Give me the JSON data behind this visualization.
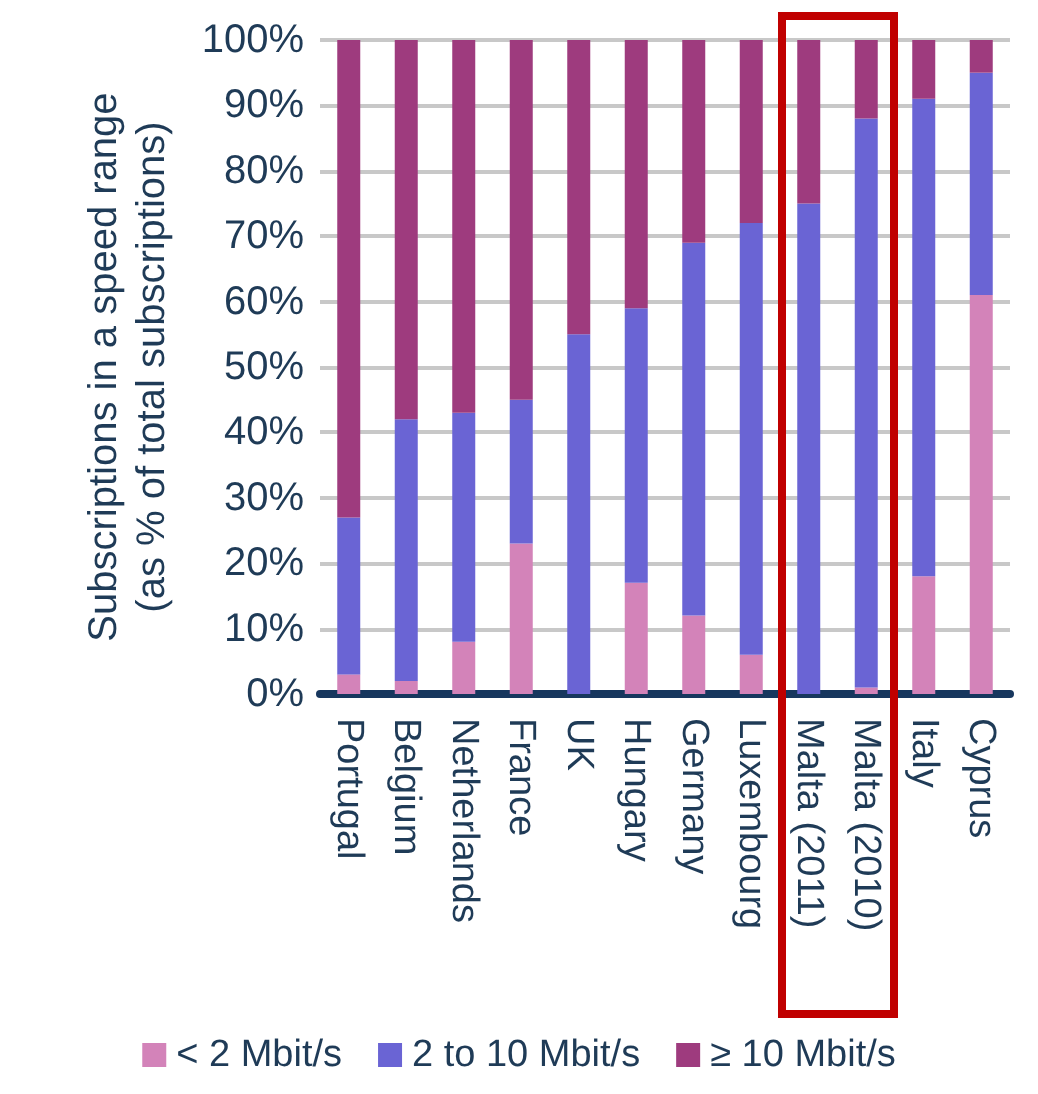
{
  "chart_data": {
    "type": "bar",
    "stacked": true,
    "ylabel": "Subscriptions in a speed range\n(as % of total subscriptions)",
    "categories": [
      "Portugal",
      "Belgium",
      "Netherlands",
      "France",
      "UK",
      "Hungary",
      "Germany",
      "Luxembourg",
      "Malta (2011)",
      "Malta (2010)",
      "Italy",
      "Cyprus"
    ],
    "series": [
      {
        "name": "< 2 Mbit/s",
        "color": "#d383b9",
        "values": [
          3,
          2,
          8,
          23,
          0,
          17,
          12,
          6,
          0,
          1,
          18,
          61
        ]
      },
      {
        "name": "2 to 10 Mbit/s",
        "color": "#6a64d4",
        "values": [
          24,
          40,
          35,
          22,
          55,
          42,
          57,
          66,
          75,
          87,
          73,
          34
        ]
      },
      {
        "name": "≥ 10 Mbit/s",
        "color": "#9e3b7e",
        "values": [
          73,
          58,
          57,
          55,
          45,
          41,
          31,
          28,
          25,
          12,
          9,
          5
        ]
      }
    ],
    "ylim": [
      0,
      100
    ],
    "yticks": [
      {
        "value": 0,
        "label": "0%"
      },
      {
        "value": 10,
        "label": "10%"
      },
      {
        "value": 20,
        "label": "20%"
      },
      {
        "value": 30,
        "label": "30%"
      },
      {
        "value": 40,
        "label": "40%"
      },
      {
        "value": 50,
        "label": "50%"
      },
      {
        "value": 60,
        "label": "60%"
      },
      {
        "value": 70,
        "label": "70%"
      },
      {
        "value": 80,
        "label": "80%"
      },
      {
        "value": 90,
        "label": "90%"
      },
      {
        "value": 100,
        "label": "100%"
      }
    ],
    "grid": "y",
    "legend": "bottom"
  }
}
